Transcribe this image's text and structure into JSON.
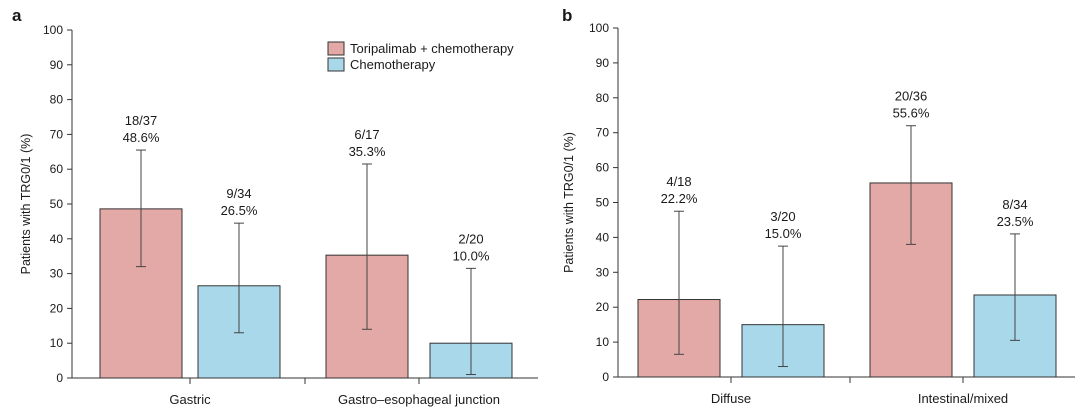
{
  "legend": {
    "items": [
      {
        "label": "Toripalimab + chemotherapy",
        "color": "#e3a9a6"
      },
      {
        "label": "Chemotherapy",
        "color": "#a9d8ea"
      }
    ],
    "placement": "top-center of panel a"
  },
  "colors": {
    "edge": "#333333",
    "axis": "#333333"
  },
  "chart_data": [
    {
      "type": "bar",
      "panel_label": "a",
      "title": "",
      "xlabel": "",
      "ylabel": "Patients with TRG0/1 (%)",
      "ylim": [
        0,
        100
      ],
      "yticks": [
        "0",
        "10",
        "20",
        "30",
        "40",
        "50",
        "60",
        "70",
        "80",
        "90",
        "100"
      ],
      "grid": false,
      "categories": [
        "Gastric",
        "Gastro–esophageal junction"
      ],
      "series": [
        {
          "name": "Toripalimab + chemotherapy",
          "values": [
            48.6,
            35.3
          ],
          "err_low": [
            32,
            14
          ],
          "err_high": [
            65.5,
            61.5
          ],
          "labels": [
            [
              "18/37",
              "48.6%"
            ],
            [
              "6/17",
              "35.3%"
            ]
          ]
        },
        {
          "name": "Chemotherapy",
          "values": [
            26.5,
            10.0
          ],
          "err_low": [
            13,
            1
          ],
          "err_high": [
            44.5,
            31.5
          ],
          "labels": [
            [
              "9/34",
              "26.5%"
            ],
            [
              "2/20",
              "10.0%"
            ]
          ]
        }
      ]
    },
    {
      "type": "bar",
      "panel_label": "b",
      "title": "",
      "xlabel": "",
      "ylabel": "Patients with TRG0/1 (%)",
      "ylim": [
        0,
        100
      ],
      "yticks": [
        "0",
        "10",
        "20",
        "30",
        "40",
        "50",
        "60",
        "70",
        "80",
        "90",
        "100"
      ],
      "grid": false,
      "categories": [
        "Diffuse",
        "Intestinal/mixed"
      ],
      "series": [
        {
          "name": "Toripalimab + chemotherapy",
          "values": [
            22.2,
            55.6
          ],
          "err_low": [
            6.5,
            38
          ],
          "err_high": [
            47.5,
            72
          ],
          "labels": [
            [
              "4/18",
              "22.2%"
            ],
            [
              "20/36",
              "55.6%"
            ]
          ]
        },
        {
          "name": "Chemotherapy",
          "values": [
            15.0,
            23.5
          ],
          "err_low": [
            3,
            10.5
          ],
          "err_high": [
            37.5,
            41
          ],
          "labels": [
            [
              "3/20",
              "15.0%"
            ],
            [
              "8/34",
              "23.5%"
            ]
          ]
        }
      ]
    }
  ]
}
